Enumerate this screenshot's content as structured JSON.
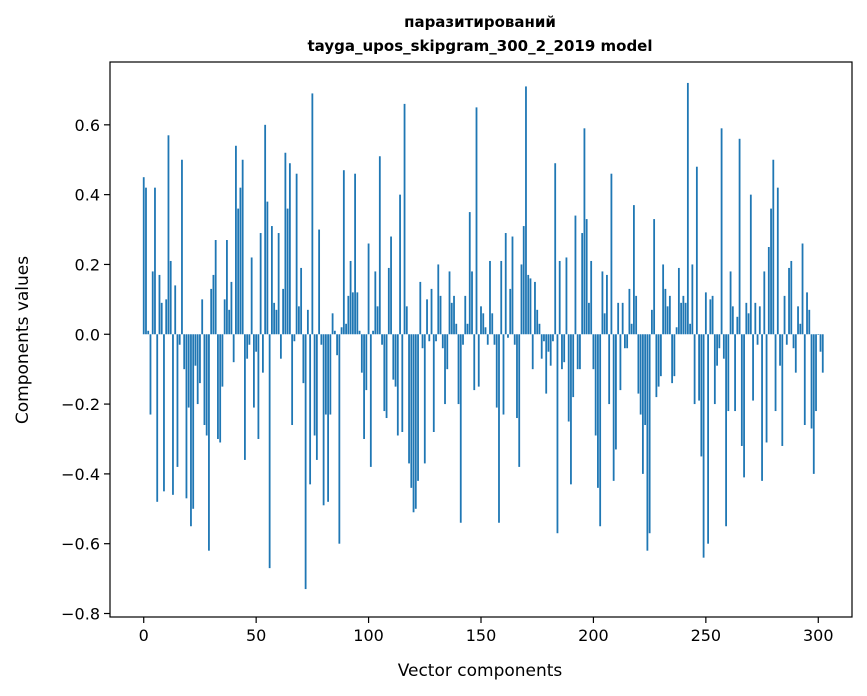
{
  "chart_data": {
    "type": "bar",
    "title": "паразитирований",
    "subtitle": "tayga_upos_skipgram_300_2_2019 model",
    "xlabel": "Vector components",
    "ylabel": "Components values",
    "xlim": [
      -15,
      315
    ],
    "ylim": [
      -0.81,
      0.78
    ],
    "xticks": [
      0,
      50,
      100,
      150,
      200,
      250,
      300
    ],
    "xtick_labels": [
      "0",
      "50",
      "100",
      "150",
      "200",
      "250",
      "300"
    ],
    "yticks": [
      -0.8,
      -0.6,
      -0.4,
      -0.2,
      0.0,
      0.2,
      0.4,
      0.6
    ],
    "ytick_labels": [
      "−0.8",
      "−0.6",
      "−0.4",
      "−0.2",
      "0.0",
      "0.2",
      "0.4",
      "0.6"
    ],
    "grid": false,
    "bar_color": "#1f77b4",
    "series": [
      {
        "values": [
          0.45,
          0.42,
          0.01,
          -0.23,
          0.18,
          0.42,
          -0.48,
          0.17,
          0.09,
          -0.45,
          0.1,
          0.57,
          0.21,
          -0.46,
          0.14,
          -0.38,
          -0.03,
          0.5,
          -0.1,
          -0.47,
          -0.21,
          -0.55,
          -0.5,
          -0.09,
          -0.2,
          -0.14,
          0.1,
          -0.26,
          -0.29,
          -0.62,
          0.13,
          0.17,
          0.27,
          -0.3,
          -0.31,
          -0.15,
          0.1,
          0.27,
          0.07,
          0.15,
          -0.08,
          0.54,
          0.36,
          0.42,
          0.5,
          -0.36,
          -0.07,
          -0.03,
          0.22,
          -0.21,
          -0.05,
          -0.3,
          0.29,
          -0.11,
          0.6,
          0.38,
          -0.67,
          0.31,
          0.09,
          0.07,
          0.29,
          -0.07,
          0.13,
          0.52,
          0.36,
          0.49,
          -0.26,
          -0.02,
          0.46,
          0.08,
          0.19,
          -0.14,
          -0.73,
          0.07,
          -0.43,
          0.69,
          -0.29,
          -0.36,
          0.3,
          -0.03,
          -0.49,
          -0.23,
          -0.48,
          -0.23,
          0.06,
          0.01,
          -0.06,
          -0.6,
          0.02,
          0.47,
          0.03,
          0.11,
          0.21,
          0.12,
          0.46,
          0.12,
          0.01,
          -0.11,
          -0.3,
          -0.16,
          0.26,
          -0.38,
          0.01,
          0.18,
          0.08,
          0.51,
          -0.03,
          -0.22,
          -0.24,
          0.19,
          0.28,
          -0.13,
          -0.15,
          -0.29,
          0.4,
          -0.28,
          0.66,
          0.08,
          -0.37,
          -0.44,
          -0.51,
          -0.5,
          -0.42,
          0.15,
          -0.04,
          -0.37,
          0.1,
          -0.02,
          0.13,
          -0.28,
          -0.02,
          0.2,
          0.11,
          -0.04,
          -0.2,
          -0.1,
          0.18,
          0.09,
          0.11,
          0.03,
          -0.2,
          -0.54,
          -0.03,
          0.11,
          0.03,
          0.35,
          0.18,
          -0.16,
          0.65,
          -0.15,
          0.08,
          0.06,
          0.02,
          -0.03,
          0.21,
          0.06,
          -0.03,
          -0.21,
          -0.54,
          0.21,
          -0.23,
          0.29,
          -0.01,
          0.13,
          0.28,
          -0.03,
          -0.24,
          -0.38,
          0.2,
          0.31,
          0.71,
          0.17,
          0.16,
          -0.1,
          0.15,
          0.07,
          0.03,
          -0.07,
          -0.02,
          -0.17,
          -0.05,
          -0.09,
          -0.02,
          0.49,
          -0.57,
          0.21,
          -0.1,
          -0.08,
          0.22,
          -0.25,
          -0.43,
          -0.18,
          0.34,
          -0.1,
          -0.1,
          0.29,
          0.59,
          0.33,
          0.09,
          0.21,
          -0.1,
          -0.29,
          -0.44,
          -0.55,
          0.18,
          0.06,
          0.17,
          -0.2,
          0.46,
          -0.42,
          -0.33,
          0.09,
          -0.16,
          0.09,
          -0.04,
          -0.04,
          0.13,
          0.03,
          0.37,
          0.11,
          -0.17,
          -0.23,
          -0.4,
          -0.26,
          -0.62,
          -0.57,
          0.07,
          0.33,
          -0.18,
          -0.15,
          -0.12,
          0.2,
          0.13,
          0.08,
          0.11,
          -0.14,
          -0.12,
          0.02,
          0.19,
          0.09,
          0.11,
          0.09,
          0.72,
          0.03,
          0.2,
          -0.2,
          0.48,
          -0.19,
          -0.35,
          -0.64,
          0.12,
          -0.6,
          0.1,
          0.11,
          -0.2,
          -0.09,
          -0.04,
          0.59,
          -0.07,
          -0.55,
          -0.22,
          0.18,
          0.08,
          -0.22,
          0.05,
          0.56,
          -0.32,
          -0.41,
          0.09,
          0.06,
          0.4,
          -0.19,
          0.09,
          -0.03,
          0.08,
          -0.42,
          0.18,
          -0.31,
          0.25,
          0.36,
          0.5,
          -0.22,
          0.42,
          -0.09,
          -0.32,
          0.11,
          -0.03,
          0.19,
          0.21,
          -0.04,
          -0.11,
          0.08,
          0.03,
          0.26,
          -0.26,
          0.12,
          0.07,
          -0.27,
          -0.4,
          -0.22,
          0.0,
          -0.05,
          -0.11
        ]
      }
    ]
  }
}
